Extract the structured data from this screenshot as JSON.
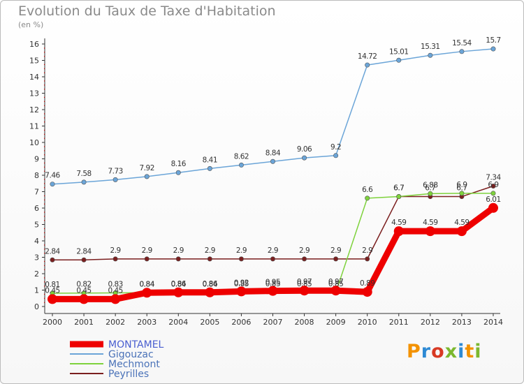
{
  "title": "Evolution du Taux de Taxe d'Habitation",
  "unit": "(en %)",
  "logo": {
    "letters": [
      "P",
      "r",
      "o",
      "x",
      "i",
      "t",
      "i"
    ],
    "colors": [
      "#f39200",
      "#2e8ad4",
      "#d83a24",
      "#7cb82f",
      "#2e8ad4",
      "#f39200",
      "#7cb82f"
    ]
  },
  "chart_data": {
    "type": "line",
    "x": [
      "2000",
      "2001",
      "2002",
      "2003",
      "2004",
      "2005",
      "2006",
      "2007",
      "2008",
      "2009",
      "2010",
      "2011",
      "2012",
      "2013",
      "2014"
    ],
    "ylim": [
      0,
      16
    ],
    "yticks": [
      0,
      1,
      2,
      3,
      4,
      5,
      6,
      7,
      8,
      9,
      10,
      11,
      12,
      13,
      14,
      15,
      16
    ],
    "grid": false,
    "legend_position": "bottom-left",
    "series": [
      {
        "name": "Gigouzac",
        "color": "#6ba5d8",
        "values": [
          7.46,
          7.58,
          7.73,
          7.92,
          8.16,
          8.41,
          8.62,
          8.84,
          9.06,
          9.2,
          14.72,
          15.01,
          15.31,
          15.54,
          15.7
        ],
        "labels": [
          "7.46",
          "7.58",
          "7.73",
          "7.92",
          "8.16",
          "8.41",
          "8.62",
          "8.84",
          "9.06",
          "9.2",
          "14.72",
          "15.01",
          "15.31",
          "15.54",
          "15.7"
        ]
      },
      {
        "name": "Peyrilles",
        "color": "#7b1f1f",
        "values": [
          2.84,
          2.84,
          2.9,
          2.9,
          2.9,
          2.9,
          2.9,
          2.9,
          2.9,
          2.9,
          2.9,
          6.7,
          6.7,
          6.7,
          7.34
        ],
        "labels": [
          "2.84",
          "2.84",
          "2.9",
          "2.9",
          "2.9",
          "2.9",
          "2.9",
          "2.9",
          "2.9",
          "2.9",
          "2.9",
          "6.7",
          "6.7",
          "6.7",
          "7.34"
        ]
      },
      {
        "name": "Mechmont",
        "color": "#7ed23c",
        "values": [
          0.81,
          0.82,
          0.83,
          0.84,
          0.84,
          0.84,
          0.85,
          0.85,
          0.85,
          0.85,
          6.6,
          6.7,
          6.88,
          6.9,
          6.9
        ],
        "labels": [
          "0.81",
          "0.82",
          "0.83",
          "0.84",
          "0.84",
          "0.84",
          "0.85",
          "0.85",
          "0.85",
          "0.85",
          "6.6",
          "6.7",
          "6.88",
          "6.9",
          "6.9"
        ]
      },
      {
        "name": "MONTAMEL",
        "color": "#ee0000",
        "values": [
          0.45,
          0.45,
          0.45,
          0.84,
          0.86,
          0.86,
          0.92,
          0.95,
          0.97,
          0.97,
          0.89,
          4.59,
          4.59,
          4.59,
          6.01
        ],
        "labels": [
          "0.45",
          "0.45",
          "0.45",
          "0.84",
          "0.86",
          "0.86",
          "0.92",
          "0.95",
          "0.97",
          "0.97",
          "0.89",
          "4.59",
          "4.59",
          "4.59",
          "6.01"
        ]
      }
    ],
    "legend_order": [
      "MONTAMEL",
      "Gigouzac",
      "Mechmont",
      "Peyrilles"
    ]
  }
}
